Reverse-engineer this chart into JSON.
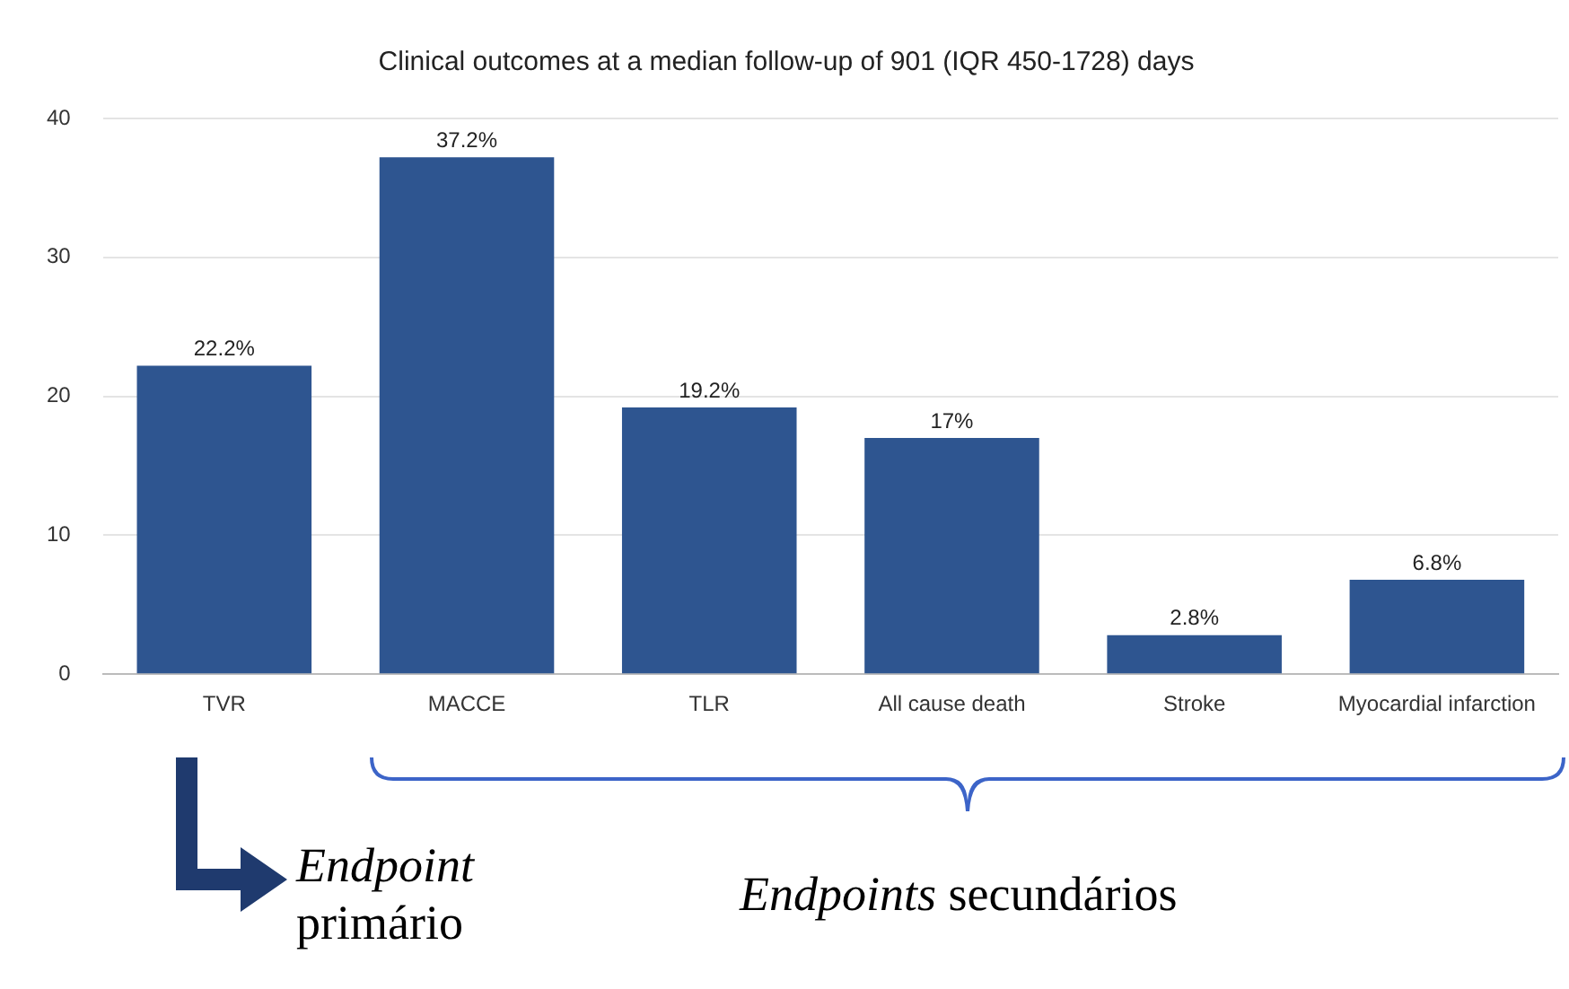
{
  "chart_data": {
    "type": "bar",
    "title": "Clinical outcomes at a median follow-up of 901 (IQR 450-1728) days",
    "categories": [
      "TVR",
      "MACCE",
      "TLR",
      "All cause death",
      "Stroke",
      "Myocardial infarction"
    ],
    "values": [
      22.2,
      37.2,
      19.2,
      17,
      2.8,
      6.8
    ],
    "value_labels": [
      "22.2%",
      "37.2%",
      "19.2%",
      "17%",
      "2.8%",
      "6.8%"
    ],
    "color": "#2e5590",
    "ylim": [
      0,
      40
    ],
    "yticks": [
      0,
      10,
      20,
      30,
      40
    ],
    "grid": "y",
    "legend": false,
    "annotations": [
      "Endpoint primário",
      "Endpoints secundários"
    ]
  }
}
